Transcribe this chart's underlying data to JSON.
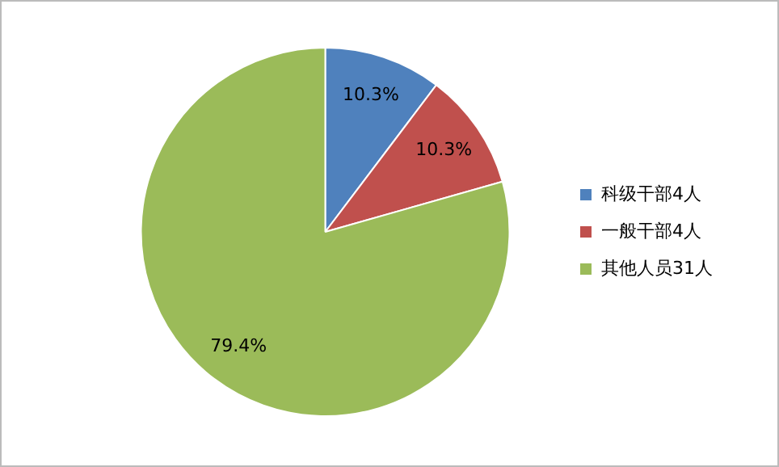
{
  "chart_data": {
    "type": "pie",
    "categories": [
      "科级干部4人",
      "一般干部4人",
      "其他人员31人"
    ],
    "values": [
      10.3,
      10.3,
      79.4
    ],
    "colors": [
      "#4f81bd",
      "#c0504d",
      "#9bbb59"
    ],
    "value_labels": [
      "10.3%",
      "10.3%",
      "79.4%"
    ],
    "legend": "right"
  }
}
